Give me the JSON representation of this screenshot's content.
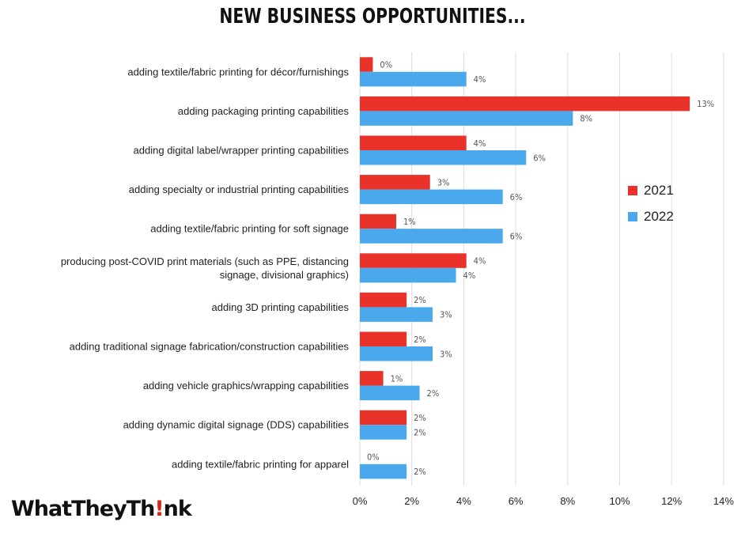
{
  "chart_data": {
    "type": "bar",
    "orientation": "horizontal",
    "title": "NEW BUSINESS OPPORTUNITIES...",
    "categories": [
      "adding textile/fabric printing for décor/furnishings",
      "adding packaging printing capabilities",
      "adding digital label/wrapper printing capabilities",
      "adding specialty or industrial printing capabilities",
      "adding textile/fabric printing for soft signage",
      "producing post-COVID print materials (such as PPE, distancing signage, divisional graphics)",
      "adding 3D printing capabilities",
      "adding traditional signage fabrication/construction capabilities",
      "adding vehicle graphics/wrapping capabilities",
      "adding dynamic digital signage (DDS) capabilities",
      "adding textile/fabric printing for apparel"
    ],
    "category_lines": [
      [
        "adding textile/fabric printing for décor/furnishings"
      ],
      [
        "adding packaging printing capabilities"
      ],
      [
        "adding digital label/wrapper printing capabilities"
      ],
      [
        "adding specialty or industrial printing capabilities"
      ],
      [
        "adding textile/fabric printing for soft signage"
      ],
      [
        "producing post-COVID print materials (such as PPE, distancing",
        "signage, divisional graphics)"
      ],
      [
        "adding 3D printing capabilities"
      ],
      [
        "adding traditional signage fabrication/construction capabilities"
      ],
      [
        "adding vehicle graphics/wrapping capabilities"
      ],
      [
        "adding dynamic digital signage (DDS) capabilities"
      ],
      [
        "adding textile/fabric printing for apparel"
      ]
    ],
    "series": [
      {
        "name": "2021",
        "color": "#e8322a",
        "values": [
          0.5,
          12.7,
          4.1,
          2.7,
          1.4,
          4.1,
          1.8,
          1.8,
          0.9,
          1.8,
          0
        ],
        "labels": [
          "0%",
          "13%",
          "4%",
          "3%",
          "1%",
          "4%",
          "2%",
          "2%",
          "1%",
          "2%",
          "0%"
        ]
      },
      {
        "name": "2022",
        "color": "#4aa8ec",
        "values": [
          4.1,
          8.2,
          6.4,
          5.5,
          5.5,
          3.7,
          2.8,
          2.8,
          2.3,
          1.8,
          1.8
        ],
        "labels": [
          "4%",
          "8%",
          "6%",
          "6%",
          "6%",
          "4%",
          "3%",
          "3%",
          "2%",
          "2%",
          "2%"
        ]
      }
    ],
    "xlim": [
      0,
      14
    ],
    "xticks": [
      "0%",
      "2%",
      "4%",
      "6%",
      "8%",
      "10%",
      "12%",
      "14%"
    ],
    "grid": true,
    "legend_position": "right"
  },
  "brand": {
    "logo_pre": "WhatTheyTh",
    "logo_bang": "!",
    "logo_post": "nk"
  }
}
